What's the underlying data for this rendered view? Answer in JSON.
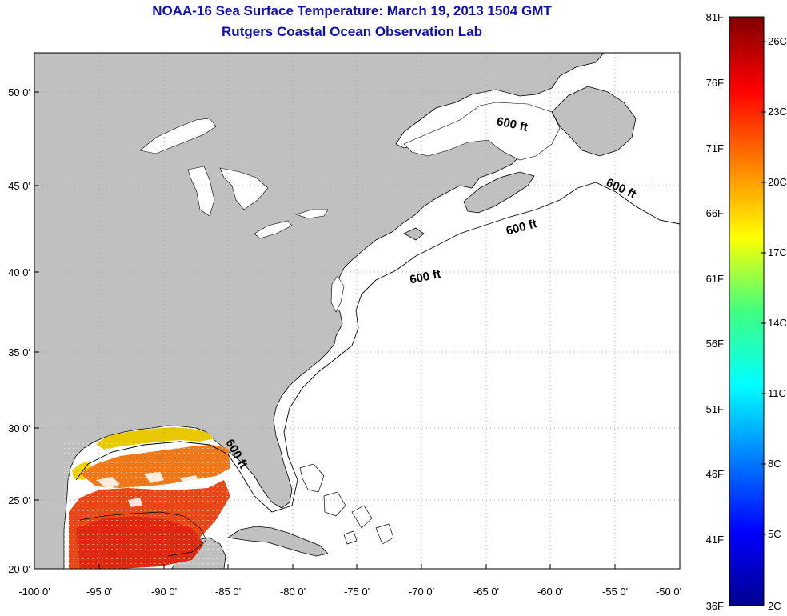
{
  "header": {
    "title": "NOAA-16 Sea Surface Temperature:  March 19, 2013 1504 GMT",
    "subtitle": "Rutgers Coastal Ocean Observation Lab"
  },
  "map": {
    "lon_range": [
      -100,
      -50
    ],
    "lat_range": [
      20,
      52
    ],
    "lon_ticks": [
      "-100 0'",
      "-95 0'",
      "-90 0'",
      "-85 0'",
      "-80 0'",
      "-75 0'",
      "-70 0'",
      "-65 0'",
      "-60 0'",
      "-55 0'",
      "-50 0'"
    ],
    "lat_ticks": [
      "20 0'",
      "25 0'",
      "30 0'",
      "35 0'",
      "40 0'",
      "45 0'",
      "50 0'"
    ],
    "contour_labels": [
      "600 ft",
      "600 ft",
      "600 ft",
      "600 ft",
      "600 ft"
    ],
    "land_color": "#c0c0c0",
    "ocean_color": "#ffffff"
  },
  "colorbar": {
    "fahrenheit_ticks": [
      "81F",
      "76F",
      "71F",
      "66F",
      "61F",
      "56F",
      "51F",
      "46F",
      "41F",
      "36F"
    ],
    "celsius_ticks": [
      "26C",
      "23C",
      "20C",
      "17C",
      "14C",
      "11C",
      "8C",
      "5C",
      "2C"
    ],
    "colormap": "jet"
  }
}
